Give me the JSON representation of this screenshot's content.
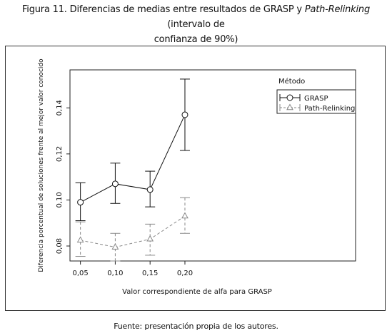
{
  "caption": {
    "line1_start": "Figura 11. Diferencias de medias entre resultados de GRASP y ",
    "line1_italic": "Path-Relinking",
    "line1_end": " (intervalo de",
    "line2": "confianza de 90%)"
  },
  "source": "Fuente: presentación propia de los autores.",
  "chart_data": {
    "type": "line",
    "xlabel": "Valor correspondiente de alfa para GRASP",
    "ylabel": "Diferencia porcentual de soluciones frente al mejor valor conocido",
    "x": [
      0.05,
      0.1,
      0.15,
      0.2
    ],
    "x_tick_labels": [
      "0,05",
      "0,10",
      "0,15",
      "0,20"
    ],
    "xlim": [
      0.035,
      0.445
    ],
    "ylim": [
      0.0735,
      0.1565
    ],
    "y_ticks": [
      0.08,
      0.1,
      0.12,
      0.14
    ],
    "y_tick_labels": [
      "0,08",
      "0,10",
      "0,12",
      "0,14"
    ],
    "legend_title": "Método",
    "legend_position": "top-right",
    "series": [
      {
        "name": "GRASP",
        "values": [
          0.099,
          0.107,
          0.1045,
          0.137
        ],
        "lower": [
          0.091,
          0.0985,
          0.097,
          0.1215
        ],
        "upper": [
          0.1075,
          0.116,
          0.1125,
          0.1525
        ],
        "color": "#111111",
        "line_style": "solid",
        "marker": "circle"
      },
      {
        "name": "Path-Relinking",
        "values": [
          0.0825,
          0.0795,
          0.083,
          0.093
        ],
        "lower": [
          0.0755,
          0.0735,
          0.076,
          0.0855
        ],
        "upper": [
          0.0905,
          0.0855,
          0.0895,
          0.101
        ],
        "color": "#888888",
        "line_style": "dashed",
        "marker": "triangle"
      }
    ]
  }
}
